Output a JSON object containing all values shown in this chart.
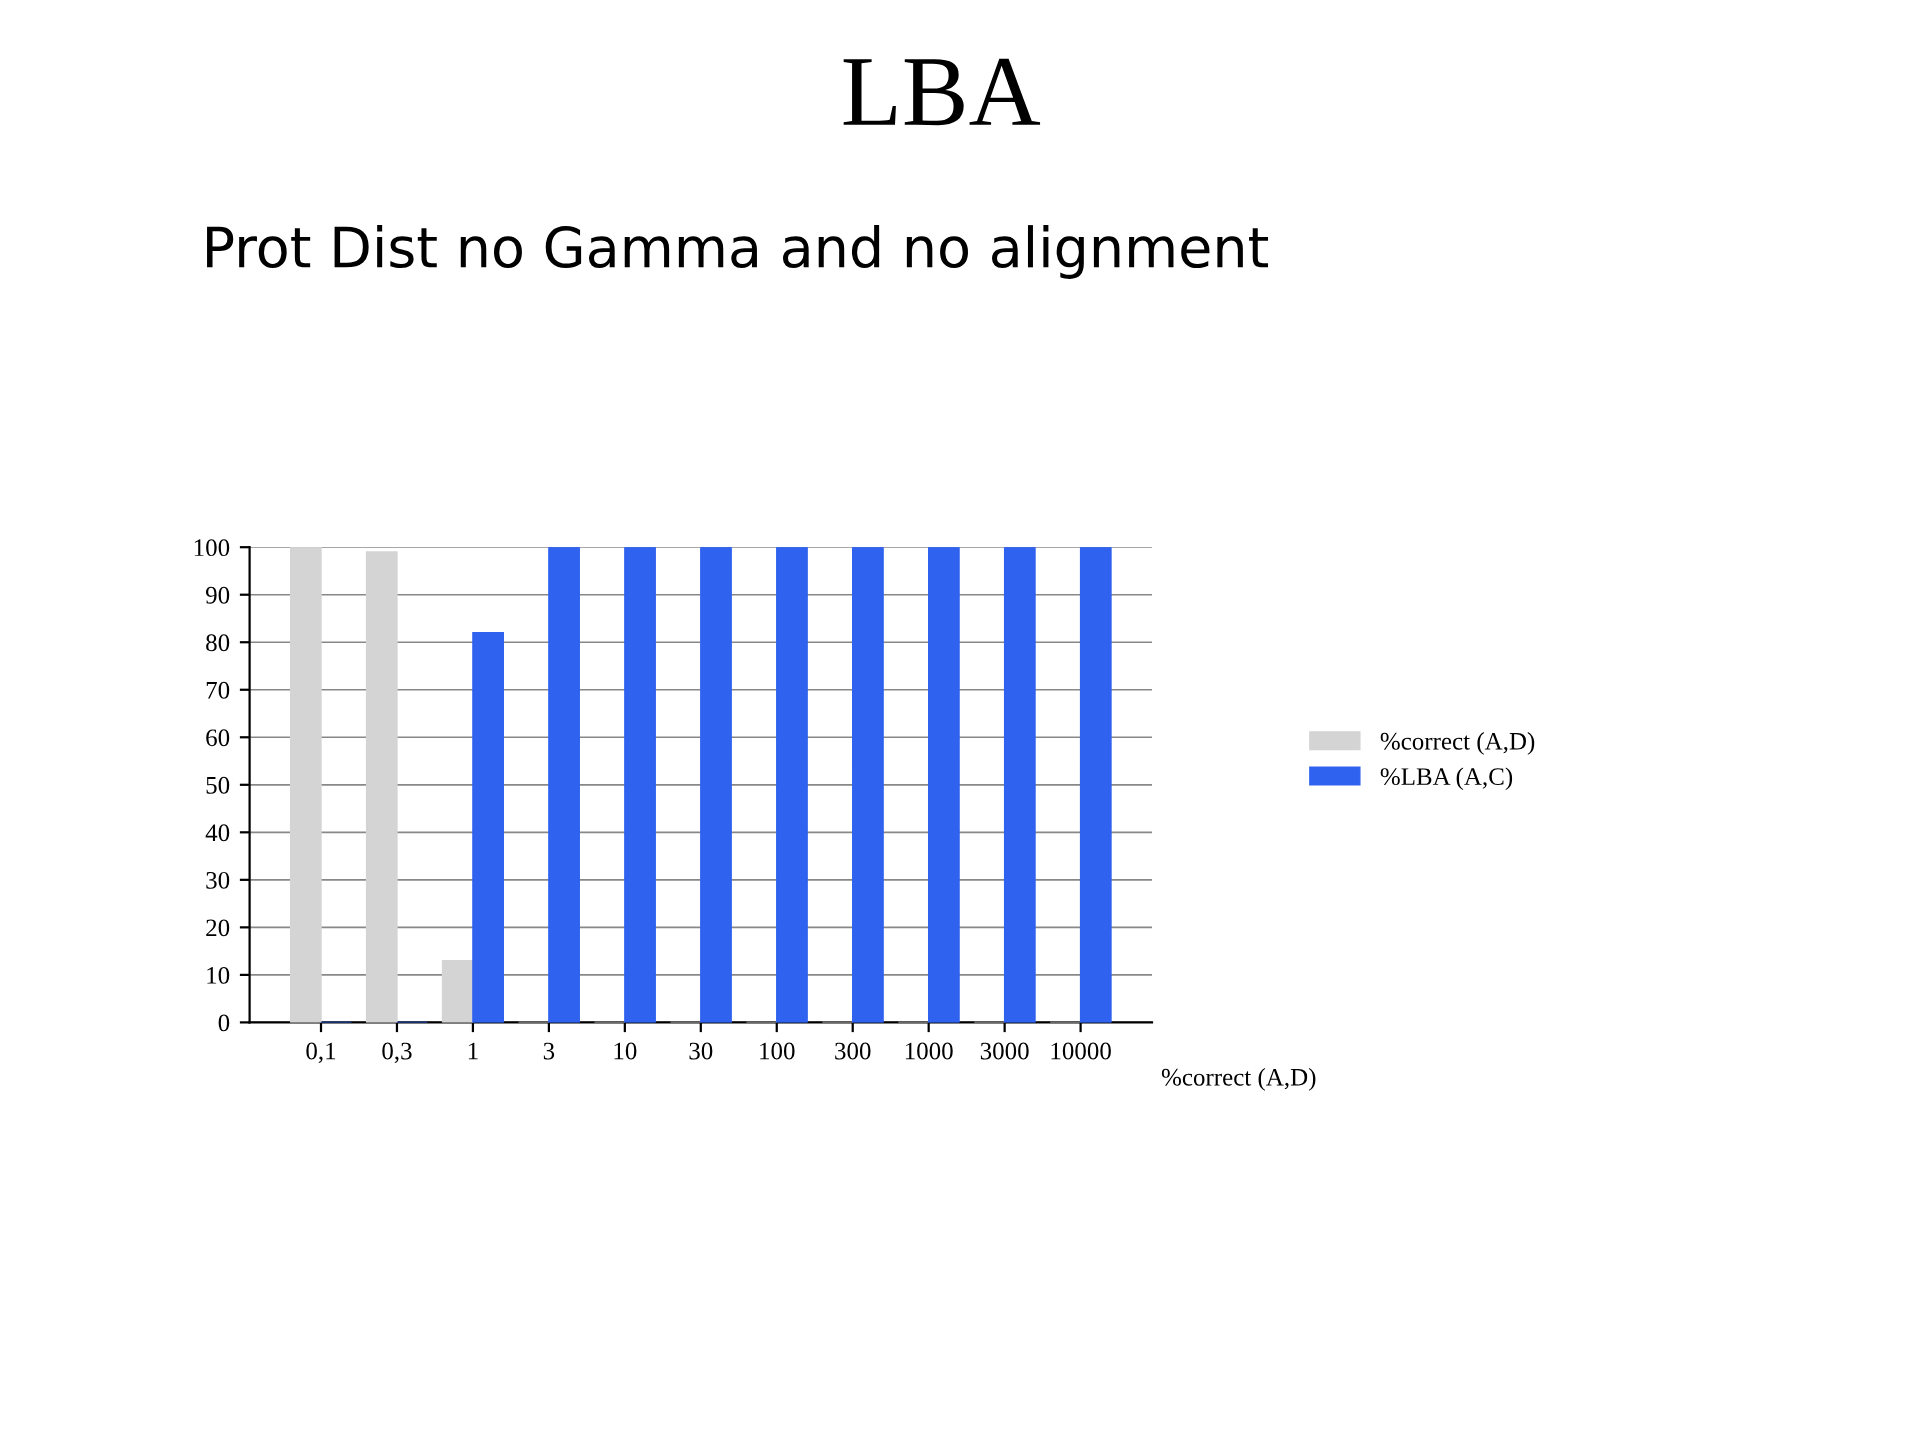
{
  "chart_data": {
    "type": "bar",
    "title": "LBA",
    "subtitle": "Prot Dist no Gamma and no alignment",
    "categories": [
      "0,1",
      "0,3",
      "1",
      "3",
      "10",
      "30",
      "100",
      "300",
      "1000",
      "3000",
      "10000"
    ],
    "series": [
      {
        "name": "%correct (A,D)",
        "color": "#d4d4d4",
        "values": [
          100,
          99,
          13,
          0,
          0,
          0,
          0,
          0,
          0,
          0,
          0
        ]
      },
      {
        "name": "%LBA (A,C)",
        "color": "#2f62ee",
        "values": [
          0,
          0,
          82,
          100,
          100,
          100,
          100,
          100,
          100,
          100,
          100
        ]
      }
    ],
    "annotations": [
      "%correct (A,D)"
    ],
    "ylim": [
      0,
      100
    ],
    "yticks": [
      0,
      10,
      20,
      30,
      40,
      50,
      60,
      70,
      80,
      90,
      100
    ],
    "grid": "y",
    "legend": "right"
  }
}
